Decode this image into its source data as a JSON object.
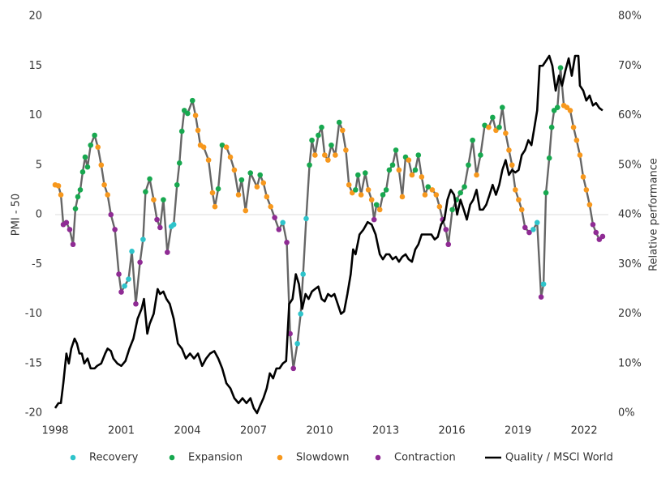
{
  "chart_data": {
    "type": "line",
    "ylabel": "PMI - 50",
    "y2label": "Relative performance",
    "xlim": [
      1998,
      2023.1
    ],
    "xticks": [
      1998,
      2001,
      2004,
      2007,
      2010,
      2013,
      2016,
      2019,
      2022
    ],
    "ylim": [
      -20,
      20
    ],
    "yticks": [
      -20,
      -15,
      -10,
      -5,
      0,
      5,
      10,
      15,
      20
    ],
    "y2lim": [
      0,
      80
    ],
    "y2ticks": [
      {
        "value": 0,
        "label": "0%"
      },
      {
        "value": 10,
        "label": "10%"
      },
      {
        "value": 20,
        "label": "20%"
      },
      {
        "value": 30,
        "label": "30%"
      },
      {
        "value": 40,
        "label": "40%"
      },
      {
        "value": 50,
        "label": "50%"
      },
      {
        "value": 60,
        "label": "60%"
      },
      {
        "value": 70,
        "label": "70%"
      },
      {
        "value": 80,
        "label": "80%"
      }
    ],
    "legend": "bottom",
    "phases": [
      {
        "name": "Recovery",
        "color": "#2ec4cb"
      },
      {
        "name": "Expansion",
        "color": "#17a84f"
      },
      {
        "name": "Slowdown",
        "color": "#f7981d"
      },
      {
        "name": "Contraction",
        "color": "#8f2b94"
      }
    ],
    "pmi": {
      "color": "#666666",
      "x": [
        1998.0,
        1998.15,
        1998.26,
        1998.37,
        1998.51,
        1998.66,
        1998.81,
        1998.92,
        1999.03,
        1999.14,
        1999.25,
        1999.36,
        1999.47,
        1999.61,
        1999.79,
        1999.94,
        2000.09,
        2000.23,
        2000.38,
        2000.53,
        2000.71,
        2000.89,
        2001.0,
        2001.15,
        2001.33,
        2001.48,
        2001.66,
        2001.85,
        2001.99,
        2002.1,
        2002.29,
        2002.47,
        2002.62,
        2002.76,
        2002.91,
        2003.09,
        2003.27,
        2003.38,
        2003.53,
        2003.64,
        2003.75,
        2003.86,
        2004.01,
        2004.23,
        2004.37,
        2004.48,
        2004.59,
        2004.74,
        2004.96,
        2005.14,
        2005.25,
        2005.4,
        2005.58,
        2005.77,
        2005.95,
        2006.13,
        2006.32,
        2006.46,
        2006.64,
        2006.86,
        2007.16,
        2007.3,
        2007.45,
        2007.6,
        2007.78,
        2007.96,
        2008.15,
        2008.33,
        2008.51,
        2008.66,
        2008.81,
        2008.99,
        2009.14,
        2009.25,
        2009.39,
        2009.54,
        2009.65,
        2009.79,
        2009.94,
        2010.09,
        2010.23,
        2010.38,
        2010.53,
        2010.71,
        2010.89,
        2011.04,
        2011.19,
        2011.33,
        2011.48,
        2011.63,
        2011.74,
        2011.88,
        2012.07,
        2012.21,
        2012.36,
        2012.47,
        2012.58,
        2012.73,
        2012.87,
        2013.02,
        2013.16,
        2013.31,
        2013.46,
        2013.6,
        2013.75,
        2013.9,
        2014.04,
        2014.19,
        2014.34,
        2014.48,
        2014.63,
        2014.78,
        2014.92,
        2015.11,
        2015.29,
        2015.44,
        2015.58,
        2015.73,
        2015.84,
        2016.02,
        2016.21,
        2016.39,
        2016.57,
        2016.75,
        2016.94,
        2017.12,
        2017.3,
        2017.49,
        2017.67,
        2017.85,
        2018.0,
        2018.15,
        2018.29,
        2018.44,
        2018.59,
        2018.73,
        2018.88,
        2019.03,
        2019.17,
        2019.32,
        2019.51,
        2019.69,
        2019.87,
        2020.05,
        2020.16,
        2020.27,
        2020.42,
        2020.53,
        2020.64,
        2020.79,
        2020.93,
        2021.08,
        2021.22,
        2021.37,
        2021.52,
        2021.66,
        2021.81,
        2021.96,
        2022.1,
        2022.25,
        2022.4,
        2022.54,
        2022.69,
        2022.84
      ],
      "values": [
        3,
        2.9,
        2,
        -1,
        -0.8,
        -1.5,
        -3,
        0.6,
        1.8,
        2.5,
        4.3,
        5.8,
        4.8,
        7,
        8,
        6.8,
        5,
        3,
        2,
        0,
        -1.5,
        -6,
        -7.8,
        -7.2,
        -6.5,
        -3.7,
        -9,
        -4.8,
        -2.5,
        2.3,
        3.6,
        1.5,
        -0.5,
        -1.3,
        1.5,
        -3.8,
        -1.2,
        -1,
        3,
        5.2,
        8.4,
        10.5,
        10.2,
        11.5,
        10,
        8.5,
        7,
        6.8,
        5.5,
        2.2,
        0.8,
        2.6,
        7,
        6.8,
        5.8,
        4.5,
        2,
        3.5,
        0.4,
        4.2,
        2.8,
        4,
        3.2,
        1.8,
        0.8,
        -0.3,
        -1.5,
        -0.8,
        -2.8,
        -12,
        -15.5,
        -13,
        -10,
        -6,
        -0.4,
        5,
        7.5,
        6,
        8,
        8.8,
        6,
        5.5,
        7,
        6,
        9.3,
        8.5,
        6.5,
        3,
        2.2,
        2.5,
        4,
        2,
        4.2,
        2.5,
        1.5,
        -0.5,
        1,
        0.5,
        2,
        2.5,
        4.5,
        5,
        6.5,
        4.5,
        1.8,
        5.8,
        5.5,
        4,
        4.5,
        6,
        3.8,
        2,
        2.8,
        2.5,
        2,
        0.8,
        -0.5,
        -1.5,
        -3,
        0.5,
        1.5,
        2.2,
        2.8,
        5,
        7.5,
        4,
        6,
        9,
        8.8,
        9.8,
        8.5,
        8.8,
        10.8,
        8.2,
        6.5,
        5,
        2.5,
        1.5,
        0.5,
        -1.3,
        -1.8,
        -1.5,
        -0.8,
        -8.3,
        -7,
        2.2,
        5.7,
        8.8,
        10.5,
        10.8,
        14.8,
        11,
        10.8,
        10.5,
        8.8,
        7.5,
        6,
        3.8,
        2.5,
        1,
        -1,
        -1.8,
        -2.5,
        -2.2
      ],
      "phase": [
        "Slowdown",
        "Slowdown",
        "Slowdown",
        "Contraction",
        "Contraction",
        "Contraction",
        "Contraction",
        "Expansion",
        "Expansion",
        "Expansion",
        "Expansion",
        "Expansion",
        "Expansion",
        "Expansion",
        "Expansion",
        "Slowdown",
        "Slowdown",
        "Slowdown",
        "Slowdown",
        "Contraction",
        "Contraction",
        "Contraction",
        "Contraction",
        "Recovery",
        "Recovery",
        "Recovery",
        "Contraction",
        "Contraction",
        "Recovery",
        "Expansion",
        "Expansion",
        "Slowdown",
        "Contraction",
        "Contraction",
        "Expansion",
        "Contraction",
        "Recovery",
        "Recovery",
        "Expansion",
        "Expansion",
        "Expansion",
        "Expansion",
        "Expansion",
        "Expansion",
        "Slowdown",
        "Slowdown",
        "Slowdown",
        "Slowdown",
        "Slowdown",
        "Slowdown",
        "Slowdown",
        "Expansion",
        "Expansion",
        "Slowdown",
        "Slowdown",
        "Slowdown",
        "Slowdown",
        "Expansion",
        "Slowdown",
        "Expansion",
        "Slowdown",
        "Expansion",
        "Slowdown",
        "Slowdown",
        "Slowdown",
        "Contraction",
        "Contraction",
        "Recovery",
        "Contraction",
        "Contraction",
        "Contraction",
        "Recovery",
        "Recovery",
        "Recovery",
        "Recovery",
        "Expansion",
        "Expansion",
        "Slowdown",
        "Expansion",
        "Expansion",
        "Slowdown",
        "Slowdown",
        "Expansion",
        "Slowdown",
        "Expansion",
        "Slowdown",
        "Slowdown",
        "Slowdown",
        "Slowdown",
        "Expansion",
        "Expansion",
        "Slowdown",
        "Expansion",
        "Slowdown",
        "Slowdown",
        "Contraction",
        "Expansion",
        "Slowdown",
        "Expansion",
        "Expansion",
        "Expansion",
        "Expansion",
        "Expansion",
        "Slowdown",
        "Slowdown",
        "Expansion",
        "Slowdown",
        "Slowdown",
        "Expansion",
        "Expansion",
        "Slowdown",
        "Slowdown",
        "Expansion",
        "Slowdown",
        "Slowdown",
        "Slowdown",
        "Contraction",
        "Contraction",
        "Contraction",
        "Expansion",
        "Expansion",
        "Expansion",
        "Expansion",
        "Expansion",
        "Expansion",
        "Slowdown",
        "Expansion",
        "Expansion",
        "Slowdown",
        "Expansion",
        "Slowdown",
        "Expansion",
        "Expansion",
        "Slowdown",
        "Slowdown",
        "Slowdown",
        "Slowdown",
        "Slowdown",
        "Slowdown",
        "Contraction",
        "Contraction",
        "Recovery",
        "Recovery",
        "Contraction",
        "Recovery",
        "Expansion",
        "Expansion",
        "Expansion",
        "Expansion",
        "Expansion",
        "Expansion",
        "Slowdown",
        "Slowdown",
        "Slowdown",
        "Slowdown",
        "Slowdown",
        "Slowdown",
        "Slowdown",
        "Slowdown",
        "Slowdown",
        "Contraction",
        "Contraction",
        "Contraction",
        "Contraction"
      ]
    },
    "series": [
      {
        "name": "Quality / MSCI World",
        "color": "#000000",
        "axis": "y2",
        "x": [
          1998.0,
          1998.15,
          1998.26,
          1998.37,
          1998.51,
          1998.62,
          1998.73,
          1998.88,
          1998.99,
          1999.1,
          1999.21,
          1999.32,
          1999.47,
          1999.61,
          1999.79,
          1999.9,
          2000.09,
          2000.27,
          2000.38,
          2000.53,
          2000.64,
          2000.82,
          2001.0,
          2001.19,
          2001.37,
          2001.55,
          2001.74,
          2001.92,
          2002.03,
          2002.18,
          2002.29,
          2002.47,
          2002.65,
          2002.76,
          2002.91,
          2003.05,
          2003.2,
          2003.38,
          2003.57,
          2003.75,
          2003.93,
          2004.12,
          2004.3,
          2004.48,
          2004.67,
          2004.85,
          2005.03,
          2005.22,
          2005.4,
          2005.58,
          2005.77,
          2005.95,
          2006.13,
          2006.32,
          2006.5,
          2006.68,
          2006.86,
          2007.01,
          2007.16,
          2007.3,
          2007.45,
          2007.6,
          2007.74,
          2007.89,
          2008.04,
          2008.18,
          2008.33,
          2008.48,
          2008.62,
          2008.77,
          2008.92,
          2009.06,
          2009.21,
          2009.36,
          2009.5,
          2009.65,
          2009.79,
          2009.94,
          2010.09,
          2010.23,
          2010.38,
          2010.53,
          2010.67,
          2010.82,
          2010.97,
          2011.11,
          2011.26,
          2011.41,
          2011.52,
          2011.63,
          2011.81,
          2011.99,
          2012.18,
          2012.36,
          2012.54,
          2012.73,
          2012.87,
          2013.02,
          2013.16,
          2013.31,
          2013.46,
          2013.6,
          2013.75,
          2013.9,
          2014.04,
          2014.19,
          2014.34,
          2014.48,
          2014.63,
          2014.78,
          2014.92,
          2015.07,
          2015.22,
          2015.36,
          2015.51,
          2015.66,
          2015.8,
          2015.95,
          2016.1,
          2016.24,
          2016.39,
          2016.54,
          2016.68,
          2016.83,
          2016.97,
          2017.12,
          2017.27,
          2017.41,
          2017.56,
          2017.71,
          2017.85,
          2018.0,
          2018.15,
          2018.29,
          2018.44,
          2018.59,
          2018.73,
          2018.88,
          2019.03,
          2019.17,
          2019.32,
          2019.47,
          2019.61,
          2019.76,
          2019.87,
          2019.98,
          2020.12,
          2020.27,
          2020.42,
          2020.56,
          2020.71,
          2020.86,
          2021.0,
          2021.15,
          2021.3,
          2021.44,
          2021.59,
          2021.74,
          2021.81,
          2021.96,
          2022.1,
          2022.25,
          2022.4,
          2022.54,
          2022.69,
          2022.84
        ],
        "values": [
          1,
          2,
          2,
          6,
          12,
          10,
          13,
          15,
          14,
          12,
          12,
          10,
          11,
          9,
          9,
          9.5,
          10,
          12,
          13,
          12.5,
          11,
          10,
          9.5,
          10.5,
          13,
          15,
          19,
          21,
          23,
          16,
          18,
          20,
          25,
          24,
          24.5,
          23,
          22,
          19,
          14,
          13,
          11,
          12,
          11,
          12,
          9.5,
          11,
          12,
          12.5,
          11,
          9,
          6,
          5,
          3,
          2,
          3,
          2,
          3,
          1,
          0,
          1.5,
          3,
          5,
          8,
          7,
          9,
          9,
          10,
          10.5,
          22,
          23,
          28,
          26,
          21,
          24,
          23,
          24.5,
          25,
          25.5,
          23,
          22.5,
          24,
          23.5,
          24,
          22,
          20,
          20.5,
          24,
          28,
          33,
          32,
          36,
          37,
          38.5,
          38,
          36,
          32,
          31,
          32,
          32,
          31,
          31.5,
          30.5,
          31.5,
          32,
          31,
          30.5,
          33,
          34,
          36,
          36,
          36,
          36,
          35,
          35.5,
          38,
          39,
          43,
          45,
          44,
          40,
          43,
          41,
          39,
          42,
          43,
          45,
          41,
          41,
          42,
          44,
          46,
          44,
          46,
          49,
          51,
          48,
          49,
          48.5,
          49,
          52,
          53,
          55,
          54,
          58,
          61,
          70,
          70,
          71,
          72,
          70,
          65,
          68,
          66,
          69,
          71.5,
          68,
          72,
          72,
          66,
          65,
          63,
          64,
          62,
          62.5,
          61.5,
          61
        ]
      }
    ]
  }
}
